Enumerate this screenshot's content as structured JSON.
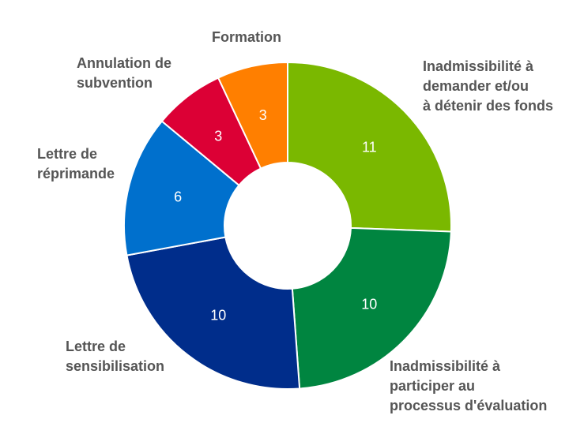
{
  "chart_data": {
    "type": "pie",
    "donut": true,
    "title": "",
    "categories": [
      [
        "Inadmissibilité à",
        "demander et/ou",
        "à détenir des fonds"
      ],
      [
        "Inadmissibilité à",
        "participer au",
        "processus d'évaluation"
      ],
      [
        "Lettre de",
        "sensibilisation"
      ],
      [
        "Lettre de",
        "réprimande"
      ],
      [
        "Annulation de",
        "subvention"
      ],
      [
        "Formation"
      ]
    ],
    "values": [
      11,
      10,
      10,
      6,
      3,
      3
    ],
    "colors": [
      "#7ab800",
      "#008540",
      "#002d8b",
      "#0070cd",
      "#dc0035",
      "#ff7f00"
    ],
    "legend": "none"
  }
}
